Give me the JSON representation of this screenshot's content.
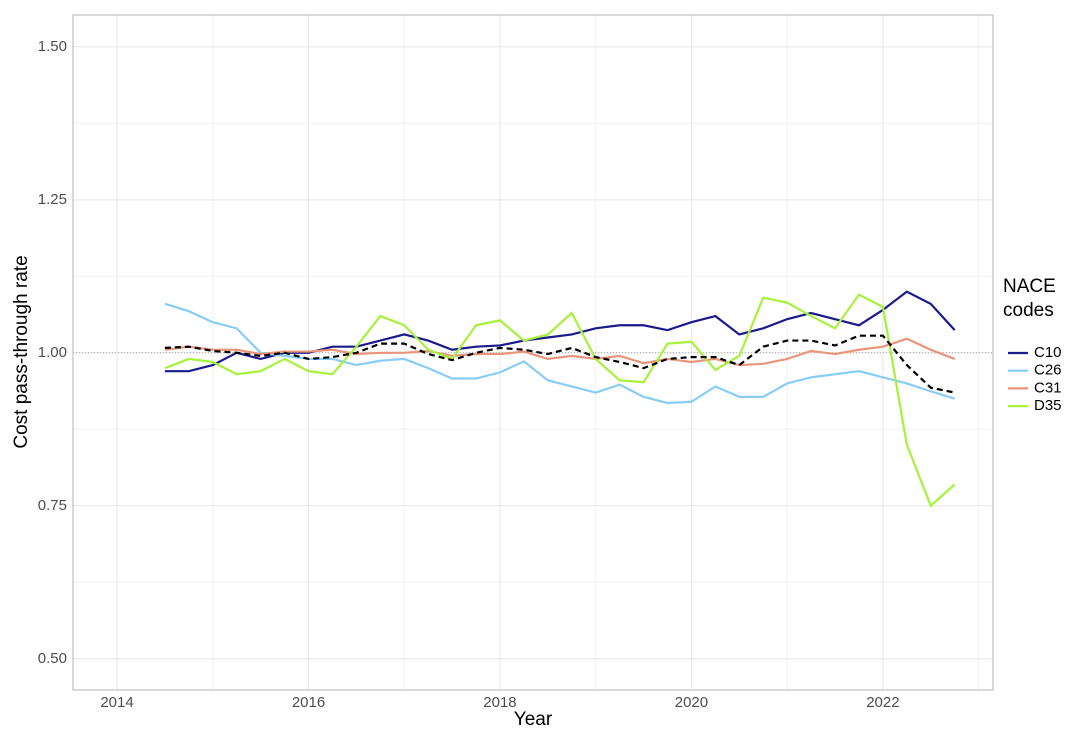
{
  "chart_data": {
    "type": "line",
    "x_label": "Year",
    "y_label": "Cost pass-through rate",
    "legend_title": "NACE codes",
    "legend": "right",
    "xlim": [
      2013.54,
      2023.15
    ],
    "xticks": [
      2014,
      2016,
      2018,
      2020,
      2022
    ],
    "ylim": [
      0.449,
      1.552
    ],
    "yticks": [
      {
        "value": 0.5,
        "label": "0.50"
      },
      {
        "value": 0.75,
        "label": "0.75"
      },
      {
        "value": 1.0,
        "label": "1.00"
      },
      {
        "value": 1.25,
        "label": "1.25"
      },
      {
        "value": 1.5,
        "label": "1.50"
      }
    ],
    "grid": true,
    "hline": 1,
    "x": [
      2014.5,
      2014.75,
      2015,
      2015.25,
      2015.5,
      2015.75,
      2016,
      2016.25,
      2016.5,
      2016.75,
      2017,
      2017.25,
      2017.5,
      2017.75,
      2018,
      2018.25,
      2018.5,
      2018.75,
      2019,
      2019.25,
      2019.5,
      2019.75,
      2020,
      2020.25,
      2020.5,
      2020.75,
      2021,
      2021.25,
      2021.5,
      2021.75,
      2022,
      2022.25,
      2022.5,
      2022.75
    ],
    "series": [
      {
        "name": "C10",
        "color": "#1a1a8c",
        "values": [
          0.97,
          0.97,
          0.98,
          1.0,
          0.99,
          1.0,
          1.0,
          1.01,
          1.01,
          1.02,
          1.03,
          1.02,
          1.005,
          1.01,
          1.012,
          1.02,
          1.025,
          1.03,
          1.04,
          1.045,
          1.045,
          1.037,
          1.05,
          1.06,
          1.03,
          1.04,
          1.055,
          1.065,
          1.055,
          1.045,
          1.07,
          1.1,
          1.08,
          1.037
        ]
      },
      {
        "name": "C26",
        "color": "#87cdf5",
        "values": [
          1.08,
          1.068,
          1.05,
          1.04,
          1.0,
          0.995,
          0.99,
          0.99,
          0.98,
          0.987,
          0.99,
          0.975,
          0.958,
          0.958,
          0.968,
          0.986,
          0.955,
          0.945,
          0.935,
          0.948,
          0.928,
          0.918,
          0.92,
          0.945,
          0.928,
          0.928,
          0.95,
          0.96,
          0.965,
          0.97,
          0.96,
          0.95,
          0.937,
          0.925
        ]
      },
      {
        "name": "C31",
        "color": "#e8957a",
        "values": [
          1.005,
          1.01,
          1.005,
          1.005,
          0.998,
          1.002,
          1.002,
          1.005,
          0.998,
          1.0,
          1.0,
          1.003,
          0.995,
          0.998,
          0.998,
          1.002,
          0.99,
          0.995,
          0.99,
          0.995,
          0.983,
          0.99,
          0.985,
          0.99,
          0.98,
          0.982,
          0.99,
          1.003,
          0.998,
          1.005,
          1.01,
          1.023,
          1.005,
          0.99
        ]
      },
      {
        "name": "D35",
        "color": "#a6f23a",
        "values": [
          0.975,
          0.99,
          0.985,
          0.965,
          0.97,
          0.99,
          0.97,
          0.965,
          1.01,
          1.06,
          1.045,
          1.005,
          0.99,
          1.045,
          1.053,
          1.02,
          1.03,
          1.065,
          0.99,
          0.955,
          0.952,
          1.015,
          1.018,
          0.972,
          0.995,
          1.09,
          1.082,
          1.06,
          1.04,
          1.095,
          1.075,
          0.85,
          0.75,
          0.785
        ]
      },
      {
        "color": "#000000",
        "dashed": true,
        "values": [
          1.008,
          1.01,
          1.003,
          1.0,
          0.995,
          1.0,
          0.99,
          0.993,
          1.0,
          1.015,
          1.015,
          0.998,
          0.988,
          1.0,
          1.008,
          1.005,
          0.998,
          1.008,
          0.993,
          0.985,
          0.975,
          0.99,
          0.993,
          0.993,
          0.98,
          1.01,
          1.02,
          1.02,
          1.012,
          1.028,
          1.028,
          0.98,
          0.943,
          0.935
        ]
      }
    ]
  }
}
